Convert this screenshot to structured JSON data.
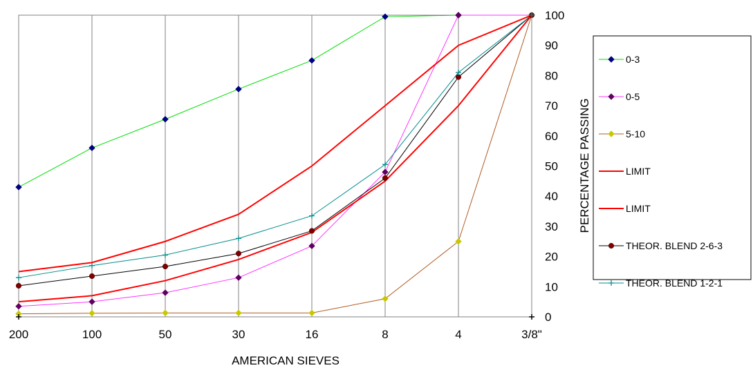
{
  "chart_data": {
    "type": "line",
    "categories": [
      "200",
      "100",
      "50",
      "30",
      "16",
      "8",
      "4",
      "3/8\""
    ],
    "xlabel": "AMERICAN SIEVES",
    "ylabel": "PERCENTAGE  PASSING",
    "ylim": [
      0,
      100
    ],
    "yticks": [
      0,
      10,
      20,
      30,
      40,
      50,
      60,
      70,
      80,
      90,
      100
    ],
    "grid": "vertical",
    "legend_position": "right",
    "series": [
      {
        "name": "0-3",
        "color": "#00dd00",
        "marker": "diamond",
        "marker_color": "#000080",
        "values": [
          43,
          56,
          65.5,
          75.5,
          85,
          99.5,
          100,
          100
        ]
      },
      {
        "name": "0-5",
        "color": "#ff33ff",
        "marker": "diamond",
        "marker_color": "#600060",
        "values": [
          3.5,
          5,
          8,
          13,
          23.5,
          48,
          100,
          100
        ]
      },
      {
        "name": " 5-10",
        "color": "#b05a20",
        "marker": "diamond",
        "marker_color": "#c8c800",
        "values": [
          1,
          1.2,
          1.3,
          1.3,
          1.3,
          6,
          25,
          100
        ]
      },
      {
        "name": "LIMIT",
        "color": "#ff0000",
        "marker": "none",
        "values": [
          15,
          18,
          25,
          34,
          50,
          70,
          90,
          100
        ]
      },
      {
        "name": "LIMIT",
        "color": "#ff0000",
        "marker": "none",
        "values": [
          5,
          7,
          12,
          19,
          28,
          45,
          70,
          100
        ]
      },
      {
        "name": "THEOR. BLEND 2-6-3",
        "color": "#000000",
        "marker": "circle",
        "marker_color": "#800000",
        "values": [
          10.3,
          13.5,
          16.7,
          21,
          28.5,
          46,
          79.5,
          100
        ]
      },
      {
        "name": "THEOR. BLEND 1-2-1",
        "color": "#008b8b",
        "marker": "plus",
        "marker_color": "#008b8b",
        "values": [
          13,
          17,
          20.5,
          26,
          33.5,
          50.5,
          81,
          100
        ]
      }
    ]
  }
}
